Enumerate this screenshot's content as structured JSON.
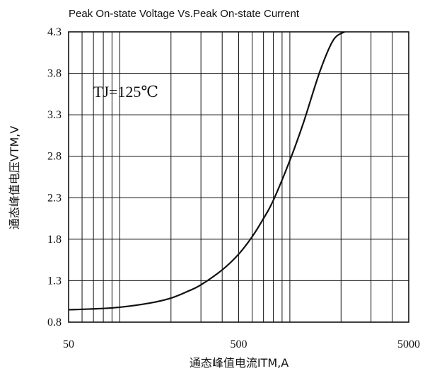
{
  "chart_data": {
    "type": "line",
    "title": "Peak On-state Voltage Vs.Peak On-state Current",
    "xlabel": "通态峰值电流ITM,A",
    "ylabel": "通态峰值电压VTM,V",
    "x_scale": "log",
    "xlim": [
      50,
      5000
    ],
    "ylim": [
      0.8,
      4.3
    ],
    "x_ticks": [
      50,
      500,
      5000
    ],
    "x_tick_labels": [
      "50",
      "500",
      "5000"
    ],
    "y_ticks": [
      0.8,
      1.3,
      1.8,
      2.3,
      2.8,
      3.3,
      3.8,
      4.3
    ],
    "y_tick_labels": [
      "0.8",
      "1.3",
      "1.8",
      "2.3",
      "2.8",
      "3.3",
      "3.8",
      "4.3"
    ],
    "grid": true,
    "annotation": "TJ=125℃",
    "series": [
      {
        "x": [
          50,
          70,
          100,
          150,
          200,
          250,
          300,
          400,
          500,
          600,
          700,
          800,
          1000,
          1200,
          1500,
          1800,
          2100
        ],
        "values": [
          0.95,
          0.96,
          0.98,
          1.03,
          1.09,
          1.17,
          1.25,
          1.43,
          1.62,
          1.83,
          2.05,
          2.27,
          2.75,
          3.2,
          3.82,
          4.2,
          4.3
        ]
      }
    ]
  }
}
